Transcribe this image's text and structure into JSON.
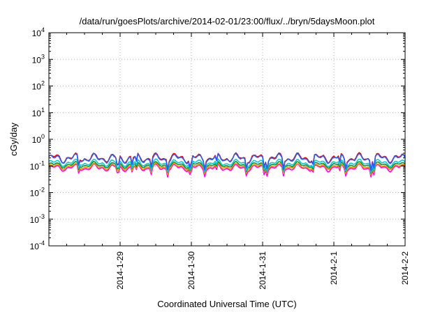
{
  "chart_data": {
    "type": "line",
    "title": "/data/run/goesPlots/archive/2014-02-01/23:00/flux/../bryn/5daysMoon.plot",
    "xlabel": "Coordinated Universal Time (UTC)",
    "ylabel": "cGy/day",
    "y_scale": "log",
    "ylim": [
      0.0001,
      10000
    ],
    "xlim": [
      "2014-01-28 00:00",
      "2014-02-02 00:00"
    ],
    "x_ticks": [
      "2014-1-29",
      "2014-1-30",
      "2014-1-31",
      "2014-2-1",
      "2014-2-2"
    ],
    "y_ticks": [
      {
        "base": "10",
        "exp": "-4"
      },
      {
        "base": "10",
        "exp": "-3"
      },
      {
        "base": "10",
        "exp": "-2"
      },
      {
        "base": "10",
        "exp": "-1"
      },
      {
        "base": "10",
        "exp": "0"
      },
      {
        "base": "10",
        "exp": "1"
      },
      {
        "base": "10",
        "exp": "2"
      },
      {
        "base": "10",
        "exp": "3"
      },
      {
        "base": "10",
        "exp": "4"
      }
    ],
    "grid": true,
    "legend": "none",
    "series": [
      {
        "color": "#ff00ff",
        "baseline": 0.085,
        "variation": 0.35
      },
      {
        "color": "#ff8c00",
        "baseline": 0.095,
        "variation": 0.3
      },
      {
        "color": "#228b22",
        "baseline": 0.11,
        "variation": 0.3
      },
      {
        "color": "#00d0d0",
        "baseline": 0.13,
        "variation": 0.35
      },
      {
        "color": "#ff0000",
        "baseline": 0.2,
        "variation": 0.45
      },
      {
        "color": "#2060ff",
        "baseline": 0.19,
        "variation": 0.45
      }
    ]
  }
}
